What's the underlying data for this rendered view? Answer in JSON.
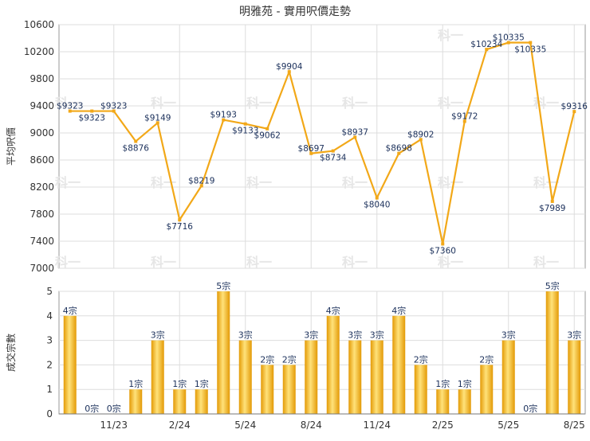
{
  "chart_data": [
    {
      "type": "line",
      "title": "明雅苑 - 實用呎價走勢",
      "ylabel": "平均呎價",
      "xlabel": "",
      "ylim": [
        7000,
        10600
      ],
      "yticks": [
        7000,
        7400,
        7800,
        8200,
        8600,
        9000,
        9400,
        9800,
        10200,
        10600
      ],
      "grid": true,
      "watermark": "科一",
      "color": "#f2a818",
      "points": [
        {
          "x": 1,
          "y": 9323,
          "label": "$9323"
        },
        {
          "x": 2,
          "y": 9323,
          "label": "$9323"
        },
        {
          "x": 3,
          "y": 9323,
          "label": "$9323"
        },
        {
          "x": 4,
          "y": 8876,
          "label": "$8876"
        },
        {
          "x": 5,
          "y": 9149,
          "label": "$9149"
        },
        {
          "x": 6,
          "y": 7716,
          "label": "$7716"
        },
        {
          "x": 7,
          "y": 8219,
          "label": "$8219"
        },
        {
          "x": 8,
          "y": 9193,
          "label": "$9193"
        },
        {
          "x": 9,
          "y": 9133,
          "label": "$9133"
        },
        {
          "x": 10,
          "y": 9062,
          "label": "$9062"
        },
        {
          "x": 11,
          "y": 9904,
          "label": "$9904"
        },
        {
          "x": 12,
          "y": 8697,
          "label": "$8697"
        },
        {
          "x": 13,
          "y": 8734,
          "label": "$8734"
        },
        {
          "x": 14,
          "y": 8937,
          "label": "$8937"
        },
        {
          "x": 15,
          "y": 8040,
          "label": "$8040"
        },
        {
          "x": 16,
          "y": 8698,
          "label": "$8698"
        },
        {
          "x": 17,
          "y": 8902,
          "label": "$8902"
        },
        {
          "x": 18,
          "y": 7360,
          "label": "$7360"
        },
        {
          "x": 19,
          "y": 9172,
          "label": "$9172"
        },
        {
          "x": 20,
          "y": 10234,
          "label": "$10234"
        },
        {
          "x": 21,
          "y": 10335,
          "label": "$10335"
        },
        {
          "x": 22,
          "y": 10335,
          "label": "$10335"
        },
        {
          "x": 23,
          "y": 7989,
          "label": "$7989"
        },
        {
          "x": 24,
          "y": 9316,
          "label": "$9316"
        }
      ]
    },
    {
      "type": "bar",
      "ylabel": "成交宗數",
      "ylim": [
        0,
        5
      ],
      "yticks": [
        0,
        1,
        2,
        3,
        4,
        5
      ],
      "grid": true,
      "color": "#f2b51a",
      "xlabels": [
        "11/23",
        "2/24",
        "5/24",
        "8/24",
        "11/24",
        "2/25",
        "5/25",
        "8/25"
      ],
      "xlabel_positions": [
        3,
        6,
        9,
        12,
        15,
        18,
        21,
        24
      ],
      "bars": [
        {
          "x": 1,
          "value": 4,
          "label": "4宗"
        },
        {
          "x": 2,
          "value": 0,
          "label": "0宗"
        },
        {
          "x": 3,
          "value": 0,
          "label": "0宗"
        },
        {
          "x": 4,
          "value": 1,
          "label": "1宗"
        },
        {
          "x": 5,
          "value": 3,
          "label": "3宗"
        },
        {
          "x": 6,
          "value": 1,
          "label": "1宗"
        },
        {
          "x": 7,
          "value": 1,
          "label": "1宗"
        },
        {
          "x": 8,
          "value": 5,
          "label": "5宗"
        },
        {
          "x": 9,
          "value": 3,
          "label": "3宗"
        },
        {
          "x": 10,
          "value": 2,
          "label": "2宗"
        },
        {
          "x": 11,
          "value": 2,
          "label": "2宗"
        },
        {
          "x": 12,
          "value": 3,
          "label": "3宗"
        },
        {
          "x": 13,
          "value": 4,
          "label": "4宗"
        },
        {
          "x": 14,
          "value": 3,
          "label": "3宗"
        },
        {
          "x": 15,
          "value": 3,
          "label": "3宗"
        },
        {
          "x": 16,
          "value": 4,
          "label": "4宗"
        },
        {
          "x": 17,
          "value": 2,
          "label": "2宗"
        },
        {
          "x": 18,
          "value": 1,
          "label": "1宗"
        },
        {
          "x": 19,
          "value": 1,
          "label": "1宗"
        },
        {
          "x": 20,
          "value": 2,
          "label": "2宗"
        },
        {
          "x": 21,
          "value": 3,
          "label": "3宗"
        },
        {
          "x": 22,
          "value": 0,
          "label": "0宗"
        },
        {
          "x": 23,
          "value": 5,
          "label": "5宗"
        },
        {
          "x": 24,
          "value": 3,
          "label": "3宗"
        }
      ]
    }
  ]
}
